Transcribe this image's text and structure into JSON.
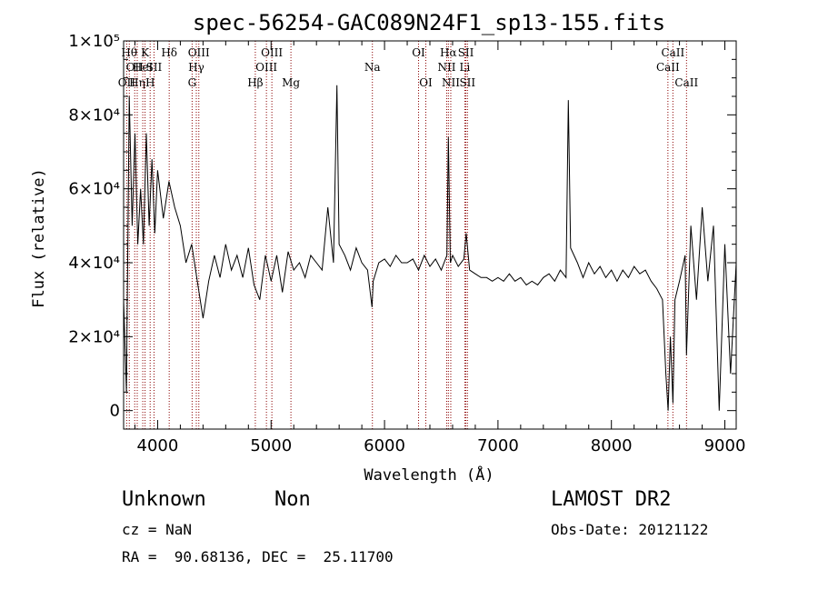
{
  "chart_data": {
    "type": "line",
    "title": "spec-56254-GAC089N24F1_sp13-155.fits",
    "xlabel": "Wavelength (Å)",
    "ylabel": "Flux (relative)",
    "xlim": [
      3700,
      9100
    ],
    "ylim": [
      -5000,
      100000
    ],
    "xticks": [
      4000,
      5000,
      6000,
      7000,
      8000,
      9000
    ],
    "xtick_labels": [
      "4000",
      "5000",
      "6000",
      "7000",
      "8000",
      "9000"
    ],
    "yticks": [
      0,
      20000,
      40000,
      60000,
      80000,
      100000
    ],
    "ytick_labels": [
      "0",
      "2×10⁴",
      "4×10⁴",
      "6×10⁴",
      "8×10⁴",
      "1×10⁵"
    ],
    "grid": false,
    "series": [
      {
        "x": [
          3700,
          3725,
          3750,
          3775,
          3800,
          3825,
          3850,
          3875,
          3900,
          3925,
          3950,
          3975,
          4000,
          4050,
          4100,
          4150,
          4200,
          4250,
          4300,
          4350,
          4400,
          4450,
          4500,
          4550,
          4600,
          4650,
          4700,
          4750,
          4800,
          4850,
          4900,
          4950,
          5000,
          5050,
          5100,
          5150,
          5200,
          5250,
          5300,
          5350,
          5400,
          5450,
          5500,
          5550,
          5580,
          5600,
          5650,
          5700,
          5750,
          5800,
          5850,
          5890,
          5900,
          5950,
          6000,
          6050,
          6100,
          6150,
          6200,
          6250,
          6300,
          6350,
          6400,
          6450,
          6500,
          6550,
          6563,
          6580,
          6600,
          6650,
          6700,
          6720,
          6750,
          6800,
          6850,
          6900,
          6950,
          7000,
          7050,
          7100,
          7150,
          7200,
          7250,
          7300,
          7350,
          7400,
          7450,
          7500,
          7550,
          7600,
          7620,
          7640,
          7700,
          7750,
          7800,
          7850,
          7900,
          7950,
          8000,
          8050,
          8100,
          8150,
          8200,
          8250,
          8300,
          8350,
          8400,
          8450,
          8480,
          8500,
          8520,
          8542,
          8560,
          8600,
          8650,
          8662,
          8700,
          8750,
          8800,
          8850,
          8900,
          8950,
          9000,
          9050,
          9100
        ],
        "y": [
          30000,
          5000,
          85000,
          50000,
          75000,
          45000,
          60000,
          45000,
          75000,
          50000,
          68000,
          48000,
          65000,
          52000,
          62000,
          55000,
          50000,
          40000,
          45000,
          35000,
          25000,
          35000,
          42000,
          36000,
          45000,
          38000,
          42000,
          36000,
          44000,
          34000,
          30000,
          42000,
          35000,
          42000,
          32000,
          43000,
          38000,
          40000,
          36000,
          42000,
          40000,
          38000,
          55000,
          40000,
          88000,
          45000,
          42000,
          38000,
          44000,
          40000,
          38000,
          28000,
          35000,
          40000,
          41000,
          39000,
          42000,
          40000,
          40000,
          41000,
          38000,
          42000,
          39000,
          41000,
          38000,
          42000,
          74000,
          40000,
          42000,
          39000,
          41000,
          48000,
          38000,
          37000,
          36000,
          36000,
          35000,
          36000,
          35000,
          37000,
          35000,
          36000,
          34000,
          35000,
          34000,
          36000,
          37000,
          35000,
          38000,
          36000,
          84000,
          44000,
          40000,
          36000,
          40000,
          37000,
          39000,
          36000,
          38000,
          35000,
          38000,
          36000,
          39000,
          37000,
          38000,
          35000,
          33000,
          30000,
          10000,
          0,
          20000,
          2000,
          30000,
          35000,
          42000,
          15000,
          50000,
          30000,
          55000,
          35000,
          50000,
          0,
          45000,
          10000,
          40000
        ]
      }
    ],
    "line_markers": [
      {
        "wl": 3727,
        "label": "OII",
        "row": 3
      },
      {
        "wl": 3750,
        "label": "Hθ",
        "row": 1
      },
      {
        "wl": 3798,
        "label": "OII",
        "row": 2
      },
      {
        "wl": 3820,
        "label": "Hη",
        "row": 3
      },
      {
        "wl": 3869,
        "label": "HeI",
        "row": 2
      },
      {
        "wl": 3889,
        "label": "K",
        "row": 1
      },
      {
        "wl": 3934,
        "label": "H",
        "row": 3
      },
      {
        "wl": 3968,
        "label": "SII",
        "row": 2
      },
      {
        "wl": 4102,
        "label": "Hδ",
        "row": 1
      },
      {
        "wl": 4304,
        "label": "G",
        "row": 3
      },
      {
        "wl": 4341,
        "label": "Hγ",
        "row": 2
      },
      {
        "wl": 4363,
        "label": "OIII",
        "row": 1
      },
      {
        "wl": 4861,
        "label": "Hβ",
        "row": 3
      },
      {
        "wl": 4959,
        "label": "OIII",
        "row": 2
      },
      {
        "wl": 5007,
        "label": "OIII",
        "row": 1
      },
      {
        "wl": 5175,
        "label": "Mg",
        "row": 3
      },
      {
        "wl": 5893,
        "label": "Na",
        "row": 2
      },
      {
        "wl": 6300,
        "label": "OI",
        "row": 1
      },
      {
        "wl": 6364,
        "label": "OI",
        "row": 3
      },
      {
        "wl": 6548,
        "label": "NII",
        "row": 2
      },
      {
        "wl": 6563,
        "label": "Hα",
        "row": 1
      },
      {
        "wl": 6584,
        "label": "NII",
        "row": 3
      },
      {
        "wl": 6708,
        "label": "Li",
        "row": 2
      },
      {
        "wl": 6717,
        "label": "SII",
        "row": 1
      },
      {
        "wl": 6731,
        "label": "SII",
        "row": 3
      },
      {
        "wl": 8498,
        "label": "CaII",
        "row": 2
      },
      {
        "wl": 8542,
        "label": "CaII",
        "row": 1
      },
      {
        "wl": 8662,
        "label": "CaII",
        "row": 3
      }
    ]
  },
  "info": {
    "class": "Unknown",
    "subclass": "Non",
    "survey": "LAMOST DR2",
    "cz": "cz = NaN",
    "obs_date": "Obs-Date: 20121122",
    "coords": "RA =  90.68136, DEC =  25.11700"
  },
  "colors": {
    "marker_line": "#8b0000",
    "spectrum": "#000000"
  }
}
